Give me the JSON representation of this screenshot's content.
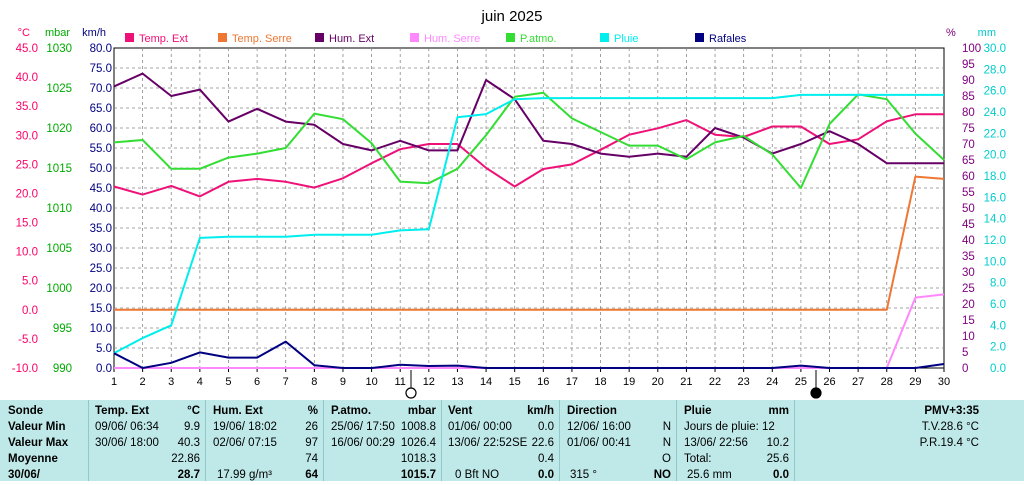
{
  "title": "juin 2025",
  "chart_data": {
    "type": "line",
    "x": [
      1,
      2,
      3,
      4,
      5,
      6,
      7,
      8,
      9,
      10,
      11,
      12,
      13,
      14,
      15,
      16,
      17,
      18,
      19,
      20,
      21,
      22,
      23,
      24,
      25,
      26,
      27,
      28,
      29,
      30
    ],
    "xlim": [
      1,
      30
    ],
    "axes": [
      {
        "id": "temp",
        "unit": "°C",
        "min": -10,
        "max": 45,
        "step": 5,
        "color": "#ff0066",
        "side": "left"
      },
      {
        "id": "mbar",
        "unit": "mbar",
        "min": 990,
        "max": 1030,
        "step": 5,
        "color": "#00aa00",
        "side": "left"
      },
      {
        "id": "kmh",
        "unit": "km/h",
        "min": 0,
        "max": 80,
        "step": 5,
        "color": "#000080",
        "side": "left"
      },
      {
        "id": "pct",
        "unit": "%",
        "min": 0,
        "max": 100,
        "step": 5,
        "color": "#800080",
        "side": "right"
      },
      {
        "id": "mm",
        "unit": "mm",
        "min": 0,
        "max": 30,
        "step": 2,
        "color": "#00cccc",
        "side": "right"
      }
    ],
    "series": [
      {
        "name": "Temp. Ext",
        "axis": "temp",
        "color": "#ee1177",
        "values": [
          21.2,
          19.8,
          21.3,
          19.5,
          22,
          22.5,
          22,
          21,
          22.6,
          25.2,
          27.6,
          28.5,
          28.5,
          24.4,
          21.2,
          24.2,
          25,
          27.5,
          30.1,
          31.2,
          32.6,
          30.1,
          29.7,
          31.5,
          31.5,
          28.5,
          29.3,
          32.4,
          33.6,
          33.6
        ]
      },
      {
        "name": "Temp. Serre",
        "axis": "temp",
        "color": "#ee7733",
        "values": [
          0,
          0,
          0,
          0,
          0,
          0,
          0,
          0,
          0,
          0,
          0,
          0,
          0,
          0,
          0,
          0,
          0,
          0,
          0,
          0,
          0,
          0,
          0,
          0,
          0,
          0,
          0,
          0,
          22.9,
          22.5
        ]
      },
      {
        "name": "Hum. Ext",
        "axis": "pct",
        "color": "#660066",
        "values": [
          88,
          92,
          85,
          87,
          77,
          81,
          77,
          76,
          70,
          68,
          71,
          68,
          68,
          90,
          84,
          71,
          70,
          67,
          66,
          67,
          66,
          75,
          72,
          67,
          70,
          74,
          70,
          64,
          64,
          64
        ]
      },
      {
        "name": "Hum. Serre",
        "axis": "pct",
        "color": "#ff88ff",
        "values": [
          0,
          0,
          0,
          0,
          0,
          0,
          0,
          0,
          0,
          0,
          0,
          0,
          0,
          0,
          0,
          0,
          0,
          0,
          0,
          0,
          0,
          0,
          0,
          0,
          0,
          0,
          0,
          0,
          22,
          23
        ]
      },
      {
        "name": "P.atmo.",
        "axis": "mbar",
        "color": "#33dd33",
        "values": [
          1018.2,
          1018.5,
          1014.9,
          1014.9,
          1016.3,
          1016.8,
          1017.5,
          1021.8,
          1021.1,
          1018.1,
          1013.3,
          1013.1,
          1014.9,
          1019.1,
          1023.9,
          1024.4,
          1021.2,
          1019.5,
          1017.8,
          1017.8,
          1016.1,
          1018.2,
          1019,
          1016.7,
          1012.5,
          1020.5,
          1024.2,
          1023.6,
          1019.3,
          1016
        ]
      },
      {
        "name": "Pluie",
        "axis": "mm",
        "color": "#00eeee",
        "values": [
          1.4,
          2.8,
          4,
          12.2,
          12.3,
          12.3,
          12.3,
          12.5,
          12.5,
          12.5,
          12.9,
          13,
          23.5,
          23.8,
          25.2,
          25.3,
          25.3,
          25.3,
          25.3,
          25.3,
          25.3,
          25.3,
          25.3,
          25.3,
          25.6,
          25.6,
          25.6,
          25.6,
          25.6,
          25.6
        ]
      },
      {
        "name": "Rafales",
        "axis": "kmh",
        "color": "#000080",
        "values": [
          3.7,
          0,
          1.3,
          3.9,
          2.6,
          2.6,
          6.6,
          0.7,
          0,
          0,
          0.8,
          0.5,
          0.6,
          0,
          0,
          0,
          0,
          0,
          0,
          0,
          0,
          0,
          0,
          0,
          0.6,
          0,
          0,
          0,
          0,
          1
        ]
      }
    ]
  },
  "stats": {
    "sonde": {
      "header": "Sonde",
      "rows": [
        "Valeur Min",
        "Valeur Max",
        "Moyenne",
        "30/06/"
      ]
    },
    "temp": {
      "header": "Temp. Ext",
      "unit": "°C",
      "rows": [
        {
          "label": "09/06/  06:34",
          "value": "9.9"
        },
        {
          "label": "30/06/  18:00",
          "value": "40.3"
        },
        {
          "label": "",
          "value": "22.86"
        },
        {
          "label": "",
          "value": "28.7"
        }
      ]
    },
    "hum": {
      "header": "Hum. Ext",
      "unit": "%",
      "rows": [
        {
          "label": "19/06/  18:02",
          "value": "26"
        },
        {
          "label": "02/06/  07:15",
          "value": "97"
        },
        {
          "label": "",
          "value": "74"
        },
        {
          "label": "17.99 g/m³",
          "value": "64"
        }
      ]
    },
    "patmo": {
      "header": "P.atmo.",
      "unit": "mbar",
      "rows": [
        {
          "label": "25/06/  17:50",
          "value": "1008.8"
        },
        {
          "label": "16/06/  00:29",
          "value": "1026.4"
        },
        {
          "label": "",
          "value": "1018.3"
        },
        {
          "label": "",
          "value": "1015.7"
        }
      ]
    },
    "vent": {
      "header": "Vent",
      "unit": "km/h",
      "rows": [
        {
          "label": "01/06/  00:00",
          "value": "0.0"
        },
        {
          "label": "13/06/  22:52SE",
          "value": "22.6"
        },
        {
          "label": "",
          "value": "0.4"
        },
        {
          "label": "0 Bft NO",
          "value": "0.0"
        }
      ]
    },
    "dir": {
      "header": "Direction",
      "rows": [
        {
          "label": "12/06/  16:00",
          "value": "N"
        },
        {
          "label": "01/06/  00:41",
          "value": "N"
        },
        {
          "label": "",
          "value": "O"
        },
        {
          "label": "315 °",
          "value": "NO"
        }
      ]
    },
    "pluie": {
      "header": "Pluie",
      "unit": "mm",
      "rows": [
        {
          "label": "",
          "value": ""
        },
        {
          "label": "13/06/  22:56",
          "value": "10.2"
        },
        {
          "label": "Total:",
          "value": "25.6"
        },
        {
          "label": "25.6 mm",
          "value": "0.0"
        }
      ],
      "days": "Jours de pluie: 12"
    },
    "pmv": {
      "header": "PMV+3:35",
      "tv": "T.V.28.6 °C",
      "pr": "P.R.19.4 °C"
    }
  }
}
